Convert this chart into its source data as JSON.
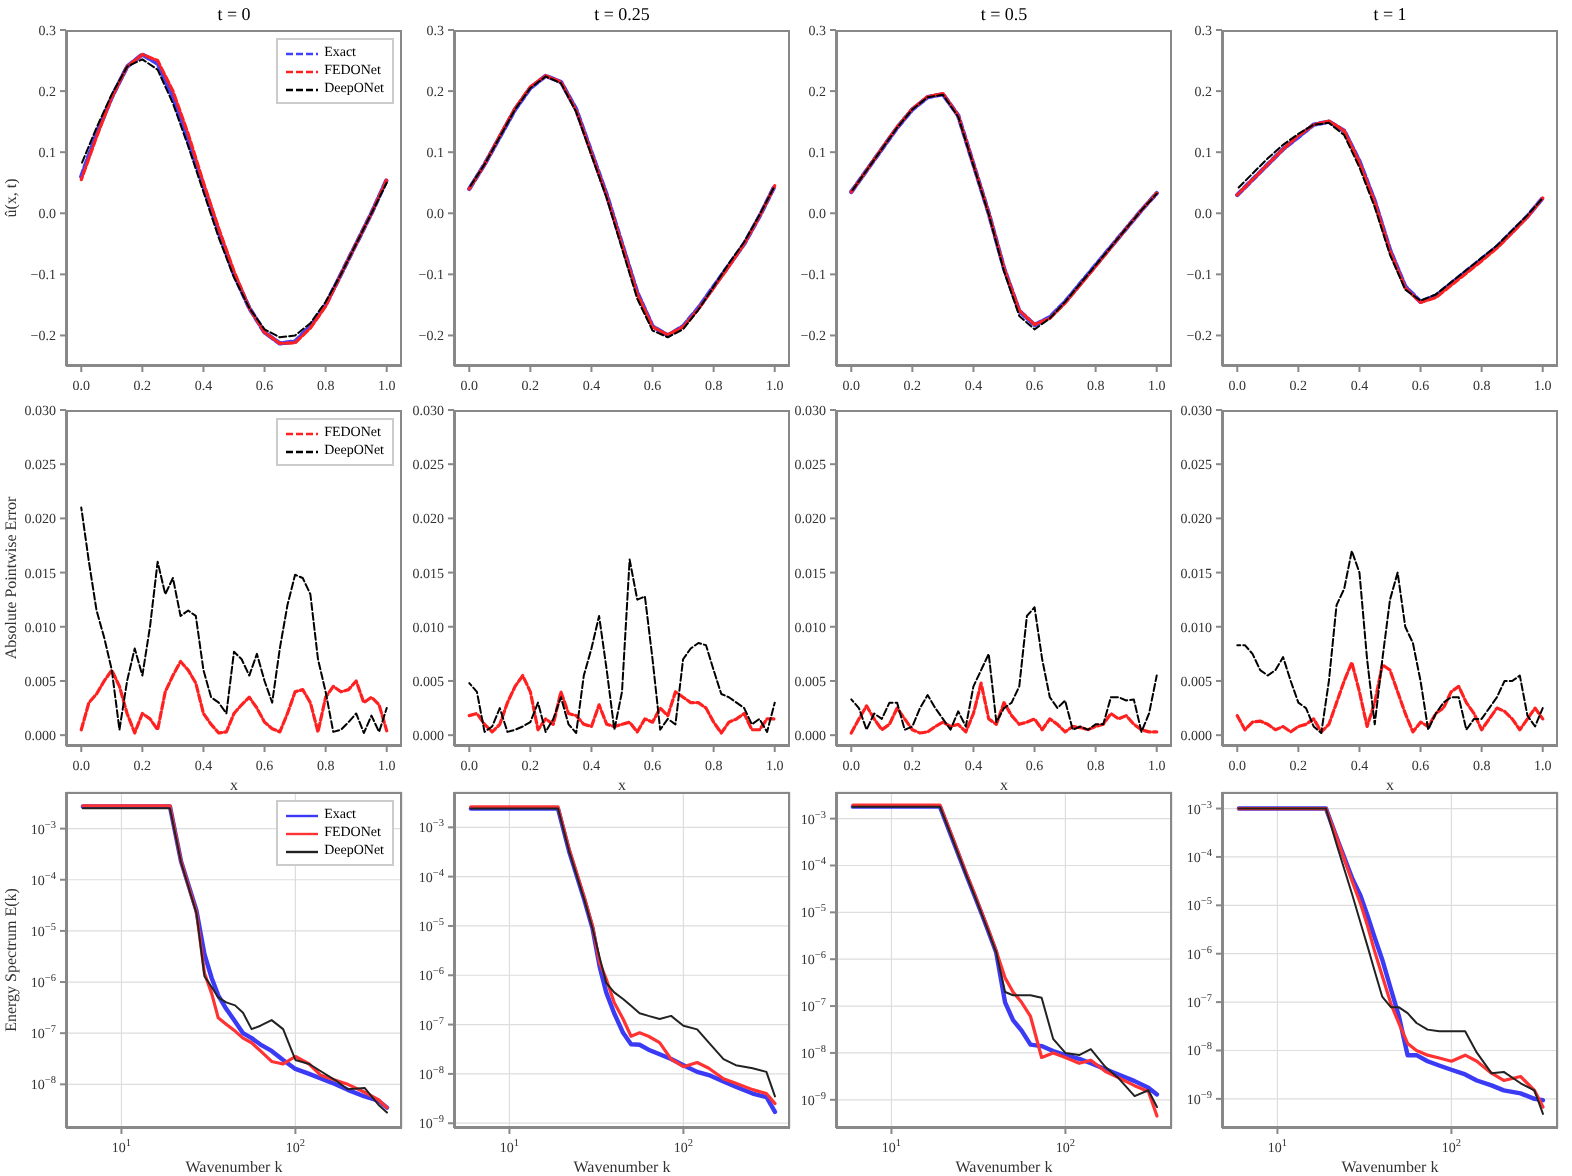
{
  "chart_data": [
    {
      "type": "line",
      "title": "t = 0",
      "ylabel": "û(x, t)",
      "legend": "top right",
      "line_style": "dashed",
      "xlim": [
        -0.05,
        1.05
      ],
      "ylim": [
        -0.25,
        0.3
      ],
      "xticks": [
        {
          "value": 0,
          "label": "0.0"
        },
        {
          "value": 0.2,
          "label": "0.2"
        },
        {
          "value": 0.4,
          "label": "0.4"
        },
        {
          "value": 0.6,
          "label": "0.6"
        },
        {
          "value": 0.8,
          "label": "0.8"
        },
        {
          "value": 1,
          "label": "1.0"
        }
      ],
      "yticks": [
        {
          "value": -0.2,
          "label": "−0.2"
        },
        {
          "value": -0.1,
          "label": "−0.1"
        },
        {
          "value": 0,
          "label": "0.0"
        },
        {
          "value": 0.1,
          "label": "0.1"
        },
        {
          "value": 0.2,
          "label": "0.2"
        },
        {
          "value": 0.3,
          "label": "0.3"
        }
      ],
      "x": [
        0,
        0.05,
        0.1,
        0.15,
        0.2,
        0.25,
        0.3,
        0.35,
        0.4,
        0.45,
        0.5,
        0.55,
        0.6,
        0.65,
        0.7,
        0.75,
        0.8,
        0.85,
        0.9,
        0.95,
        1
      ],
      "series": [
        {
          "name": "Exact",
          "color": "#4040ff",
          "values": [
            0.06,
            0.13,
            0.19,
            0.24,
            0.26,
            0.245,
            0.19,
            0.12,
            0.045,
            -0.03,
            -0.1,
            -0.155,
            -0.195,
            -0.213,
            -0.21,
            -0.185,
            -0.15,
            -0.1,
            -0.05,
            0.0,
            0.055
          ]
        },
        {
          "name": "FEDONet",
          "color": "#ff2020",
          "values": [
            0.055,
            0.125,
            0.19,
            0.24,
            0.26,
            0.25,
            0.2,
            0.13,
            0.05,
            -0.025,
            -0.095,
            -0.155,
            -0.195,
            -0.213,
            -0.212,
            -0.188,
            -0.152,
            -0.1,
            -0.05,
            0.0,
            0.055
          ]
        },
        {
          "name": "DeepONet",
          "color": "#000000",
          "values": [
            0.08,
            0.14,
            0.195,
            0.24,
            0.252,
            0.235,
            0.18,
            0.11,
            0.035,
            -0.04,
            -0.105,
            -0.155,
            -0.19,
            -0.203,
            -0.2,
            -0.18,
            -0.145,
            -0.1,
            -0.05,
            0.0,
            0.05
          ]
        }
      ]
    },
    {
      "type": "line",
      "title": "t = 0.25",
      "line_style": "dashed",
      "xlim": [
        -0.05,
        1.05
      ],
      "ylim": [
        -0.25,
        0.3
      ],
      "xticks": [
        {
          "value": 0,
          "label": "0.0"
        },
        {
          "value": 0.2,
          "label": "0.2"
        },
        {
          "value": 0.4,
          "label": "0.4"
        },
        {
          "value": 0.6,
          "label": "0.6"
        },
        {
          "value": 0.8,
          "label": "0.8"
        },
        {
          "value": 1,
          "label": "1.0"
        }
      ],
      "yticks": [
        {
          "value": -0.2,
          "label": "−0.2"
        },
        {
          "value": -0.1,
          "label": "−0.1"
        },
        {
          "value": 0,
          "label": "0.0"
        },
        {
          "value": 0.1,
          "label": "0.1"
        },
        {
          "value": 0.2,
          "label": "0.2"
        },
        {
          "value": 0.3,
          "label": "0.3"
        }
      ],
      "x": [
        0,
        0.05,
        0.1,
        0.15,
        0.2,
        0.25,
        0.3,
        0.35,
        0.4,
        0.45,
        0.5,
        0.55,
        0.6,
        0.65,
        0.7,
        0.75,
        0.8,
        0.85,
        0.9,
        0.95,
        1
      ],
      "series": [
        {
          "color": "#4040ff",
          "values": [
            0.04,
            0.08,
            0.125,
            0.17,
            0.205,
            0.225,
            0.215,
            0.17,
            0.1,
            0.03,
            -0.05,
            -0.13,
            -0.185,
            -0.2,
            -0.185,
            -0.155,
            -0.12,
            -0.085,
            -0.05,
            -0.005,
            0.045
          ]
        },
        {
          "color": "#ff2020",
          "values": [
            0.04,
            0.08,
            0.127,
            0.172,
            0.207,
            0.225,
            0.215,
            0.168,
            0.098,
            0.028,
            -0.052,
            -0.132,
            -0.186,
            -0.199,
            -0.186,
            -0.157,
            -0.122,
            -0.087,
            -0.05,
            -0.005,
            0.045
          ]
        },
        {
          "color": "#000000",
          "values": [
            0.042,
            0.08,
            0.125,
            0.17,
            0.205,
            0.224,
            0.213,
            0.166,
            0.095,
            0.025,
            -0.058,
            -0.14,
            -0.192,
            -0.203,
            -0.19,
            -0.158,
            -0.12,
            -0.082,
            -0.047,
            -0.003,
            0.045
          ]
        }
      ]
    },
    {
      "type": "line",
      "title": "t = 0.5",
      "line_style": "dashed",
      "xlim": [
        -0.05,
        1.05
      ],
      "ylim": [
        -0.25,
        0.3
      ],
      "xticks": [
        {
          "value": 0,
          "label": "0.0"
        },
        {
          "value": 0.2,
          "label": "0.2"
        },
        {
          "value": 0.4,
          "label": "0.4"
        },
        {
          "value": 0.6,
          "label": "0.6"
        },
        {
          "value": 0.8,
          "label": "0.8"
        },
        {
          "value": 1,
          "label": "1.0"
        }
      ],
      "yticks": [
        {
          "value": -0.2,
          "label": "−0.2"
        },
        {
          "value": -0.1,
          "label": "−0.1"
        },
        {
          "value": 0,
          "label": "0.0"
        },
        {
          "value": 0.1,
          "label": "0.1"
        },
        {
          "value": 0.2,
          "label": "0.2"
        },
        {
          "value": 0.3,
          "label": "0.3"
        }
      ],
      "x": [
        0,
        0.05,
        0.1,
        0.15,
        0.2,
        0.25,
        0.3,
        0.35,
        0.4,
        0.45,
        0.5,
        0.55,
        0.6,
        0.65,
        0.7,
        0.75,
        0.8,
        0.85,
        0.9,
        0.95,
        1
      ],
      "series": [
        {
          "color": "#4040ff",
          "values": [
            0.035,
            0.07,
            0.105,
            0.14,
            0.17,
            0.19,
            0.195,
            0.16,
            0.08,
            0.0,
            -0.09,
            -0.16,
            -0.183,
            -0.17,
            -0.145,
            -0.115,
            -0.085,
            -0.055,
            -0.025,
            0.005,
            0.033
          ]
        },
        {
          "color": "#ff2020",
          "values": [
            0.035,
            0.07,
            0.106,
            0.141,
            0.171,
            0.191,
            0.196,
            0.16,
            0.08,
            0.0,
            -0.09,
            -0.159,
            -0.182,
            -0.172,
            -0.147,
            -0.117,
            -0.087,
            -0.056,
            -0.025,
            0.005,
            0.033
          ]
        },
        {
          "color": "#000000",
          "values": [
            0.035,
            0.07,
            0.105,
            0.14,
            0.17,
            0.19,
            0.194,
            0.158,
            0.078,
            -0.002,
            -0.095,
            -0.168,
            -0.19,
            -0.172,
            -0.145,
            -0.115,
            -0.085,
            -0.055,
            -0.025,
            0.005,
            0.032
          ]
        }
      ]
    },
    {
      "type": "line",
      "title": "t = 1",
      "line_style": "dashed",
      "xlim": [
        -0.05,
        1.05
      ],
      "ylim": [
        -0.25,
        0.3
      ],
      "xticks": [
        {
          "value": 0,
          "label": "0.0"
        },
        {
          "value": 0.2,
          "label": "0.2"
        },
        {
          "value": 0.4,
          "label": "0.4"
        },
        {
          "value": 0.6,
          "label": "0.6"
        },
        {
          "value": 0.8,
          "label": "0.8"
        },
        {
          "value": 1,
          "label": "1.0"
        }
      ],
      "yticks": [
        {
          "value": -0.2,
          "label": "−0.2"
        },
        {
          "value": -0.1,
          "label": "−0.1"
        },
        {
          "value": 0,
          "label": "0.0"
        },
        {
          "value": 0.1,
          "label": "0.1"
        },
        {
          "value": 0.2,
          "label": "0.2"
        },
        {
          "value": 0.3,
          "label": "0.3"
        }
      ],
      "x": [
        0,
        0.05,
        0.1,
        0.15,
        0.2,
        0.25,
        0.3,
        0.35,
        0.4,
        0.45,
        0.5,
        0.55,
        0.6,
        0.65,
        0.7,
        0.75,
        0.8,
        0.85,
        0.9,
        0.95,
        1
      ],
      "series": [
        {
          "color": "#4040ff",
          "values": [
            0.03,
            0.055,
            0.08,
            0.105,
            0.125,
            0.145,
            0.15,
            0.135,
            0.085,
            0.02,
            -0.06,
            -0.12,
            -0.145,
            -0.135,
            -0.115,
            -0.095,
            -0.075,
            -0.055,
            -0.03,
            -0.005,
            0.025
          ]
        },
        {
          "color": "#ff2020",
          "values": [
            0.03,
            0.055,
            0.08,
            0.105,
            0.127,
            0.145,
            0.151,
            0.135,
            0.083,
            0.018,
            -0.062,
            -0.122,
            -0.146,
            -0.138,
            -0.118,
            -0.098,
            -0.078,
            -0.057,
            -0.032,
            -0.006,
            0.025
          ]
        },
        {
          "color": "#000000",
          "values": [
            0.04,
            0.065,
            0.09,
            0.112,
            0.13,
            0.145,
            0.148,
            0.128,
            0.075,
            0.01,
            -0.068,
            -0.125,
            -0.143,
            -0.133,
            -0.113,
            -0.093,
            -0.073,
            -0.053,
            -0.028,
            -0.003,
            0.025
          ]
        }
      ]
    },
    {
      "type": "line",
      "xlabel": "x",
      "ylabel": "Absolute Pointwise Error",
      "legend": "top right",
      "line_style": "dashed",
      "xlim": [
        -0.05,
        1.05
      ],
      "ylim": [
        -0.001,
        0.03
      ],
      "xticks": [
        {
          "value": 0,
          "label": "0.0"
        },
        {
          "value": 0.2,
          "label": "0.2"
        },
        {
          "value": 0.4,
          "label": "0.4"
        },
        {
          "value": 0.6,
          "label": "0.6"
        },
        {
          "value": 0.8,
          "label": "0.8"
        },
        {
          "value": 1,
          "label": "1.0"
        }
      ],
      "yticks": [
        {
          "value": 0,
          "label": "0.000"
        },
        {
          "value": 0.005,
          "label": "0.005"
        },
        {
          "value": 0.01,
          "label": "0.010"
        },
        {
          "value": 0.015,
          "label": "0.015"
        },
        {
          "value": 0.02,
          "label": "0.020"
        },
        {
          "value": 0.025,
          "label": "0.025"
        },
        {
          "value": 0.03,
          "label": "0.030"
        }
      ],
      "x": [
        0,
        0.025,
        0.05,
        0.075,
        0.1,
        0.125,
        0.15,
        0.175,
        0.2,
        0.225,
        0.25,
        0.275,
        0.3,
        0.325,
        0.35,
        0.375,
        0.4,
        0.425,
        0.45,
        0.475,
        0.5,
        0.525,
        0.55,
        0.575,
        0.6,
        0.625,
        0.65,
        0.675,
        0.7,
        0.725,
        0.75,
        0.775,
        0.8,
        0.825,
        0.85,
        0.875,
        0.9,
        0.925,
        0.95,
        0.975,
        1
      ],
      "series": [
        {
          "name": "FEDONet",
          "color": "#ff2020",
          "values": [
            0.0005,
            0.003,
            0.0038,
            0.005,
            0.006,
            0.0045,
            0.002,
            0.0002,
            0.002,
            0.0015,
            0.0005,
            0.004,
            0.0055,
            0.0068,
            0.006,
            0.0048,
            0.002,
            0.001,
            0.0002,
            0.0003,
            0.002,
            0.0028,
            0.0035,
            0.0025,
            0.0012,
            0.0006,
            0.0003,
            0.002,
            0.004,
            0.0042,
            0.003,
            0.0003,
            0.0035,
            0.0045,
            0.004,
            0.0042,
            0.005,
            0.003,
            0.0035,
            0.0028,
            0.0004
          ]
        },
        {
          "name": "DeepONet",
          "color": "#000000",
          "values": [
            0.021,
            0.016,
            0.0115,
            0.009,
            0.006,
            0.0005,
            0.005,
            0.008,
            0.0055,
            0.01,
            0.016,
            0.013,
            0.0145,
            0.011,
            0.0115,
            0.011,
            0.006,
            0.0035,
            0.003,
            0.002,
            0.0077,
            0.007,
            0.0055,
            0.0075,
            0.005,
            0.003,
            0.008,
            0.012,
            0.0148,
            0.0145,
            0.013,
            0.007,
            0.004,
            0.0003,
            0.0005,
            0.0012,
            0.002,
            0.0002,
            0.0018,
            0.0003,
            0.0025
          ]
        }
      ]
    },
    {
      "type": "line",
      "xlabel": "x",
      "line_style": "dashed",
      "xlim": [
        -0.05,
        1.05
      ],
      "ylim": [
        -0.001,
        0.03
      ],
      "xticks": [
        {
          "value": 0,
          "label": "0.0"
        },
        {
          "value": 0.2,
          "label": "0.2"
        },
        {
          "value": 0.4,
          "label": "0.4"
        },
        {
          "value": 0.6,
          "label": "0.6"
        },
        {
          "value": 0.8,
          "label": "0.8"
        },
        {
          "value": 1,
          "label": "1.0"
        }
      ],
      "yticks": [
        {
          "value": 0,
          "label": "0.000"
        },
        {
          "value": 0.005,
          "label": "0.005"
        },
        {
          "value": 0.01,
          "label": "0.010"
        },
        {
          "value": 0.015,
          "label": "0.015"
        },
        {
          "value": 0.02,
          "label": "0.020"
        },
        {
          "value": 0.025,
          "label": "0.025"
        },
        {
          "value": 0.03,
          "label": "0.030"
        }
      ],
      "x": [
        0,
        0.025,
        0.05,
        0.075,
        0.1,
        0.125,
        0.15,
        0.175,
        0.2,
        0.225,
        0.25,
        0.275,
        0.3,
        0.325,
        0.35,
        0.375,
        0.4,
        0.425,
        0.45,
        0.475,
        0.5,
        0.525,
        0.55,
        0.575,
        0.6,
        0.625,
        0.65,
        0.675,
        0.7,
        0.725,
        0.75,
        0.775,
        0.8,
        0.825,
        0.85,
        0.875,
        0.9,
        0.925,
        0.95,
        0.975,
        1
      ],
      "series": [
        {
          "color": "#ff2020",
          "values": [
            0.0018,
            0.002,
            0.001,
            0.0003,
            0.001,
            0.003,
            0.0045,
            0.0055,
            0.004,
            0.0005,
            0.0015,
            0.001,
            0.004,
            0.002,
            0.0018,
            0.001,
            0.0008,
            0.0028,
            0.001,
            0.0008,
            0.001,
            0.0012,
            0.0003,
            0.0015,
            0.0012,
            0.0025,
            0.0018,
            0.004,
            0.0035,
            0.003,
            0.003,
            0.0025,
            0.0012,
            0.0002,
            0.0012,
            0.0015,
            0.002,
            0.0005,
            0.0005,
            0.0015,
            0.0015
          ]
        },
        {
          "color": "#000000",
          "values": [
            0.0048,
            0.004,
            0.0003,
            0.0008,
            0.0025,
            0.0003,
            0.0005,
            0.0008,
            0.0012,
            0.003,
            0.0003,
            0.0015,
            0.0035,
            0.001,
            0.0002,
            0.0055,
            0.008,
            0.011,
            0.006,
            0.0005,
            0.004,
            0.0162,
            0.0125,
            0.0128,
            0.007,
            0.0005,
            0.0015,
            0.001,
            0.007,
            0.008,
            0.0085,
            0.0083,
            0.006,
            0.0038,
            0.0035,
            0.003,
            0.0025,
            0.001,
            0.0015,
            0.0003,
            0.003
          ]
        }
      ]
    },
    {
      "type": "line",
      "xlabel": "x",
      "line_style": "dashed",
      "xlim": [
        -0.05,
        1.05
      ],
      "ylim": [
        -0.001,
        0.03
      ],
      "xticks": [
        {
          "value": 0,
          "label": "0.0"
        },
        {
          "value": 0.2,
          "label": "0.2"
        },
        {
          "value": 0.4,
          "label": "0.4"
        },
        {
          "value": 0.6,
          "label": "0.6"
        },
        {
          "value": 0.8,
          "label": "0.8"
        },
        {
          "value": 1,
          "label": "1.0"
        }
      ],
      "yticks": [
        {
          "value": 0,
          "label": "0.000"
        },
        {
          "value": 0.005,
          "label": "0.005"
        },
        {
          "value": 0.01,
          "label": "0.010"
        },
        {
          "value": 0.015,
          "label": "0.015"
        },
        {
          "value": 0.02,
          "label": "0.020"
        },
        {
          "value": 0.025,
          "label": "0.025"
        },
        {
          "value": 0.03,
          "label": "0.030"
        }
      ],
      "x": [
        0,
        0.025,
        0.05,
        0.075,
        0.1,
        0.125,
        0.15,
        0.175,
        0.2,
        0.225,
        0.25,
        0.275,
        0.3,
        0.325,
        0.35,
        0.375,
        0.4,
        0.425,
        0.45,
        0.475,
        0.5,
        0.525,
        0.55,
        0.575,
        0.6,
        0.625,
        0.65,
        0.675,
        0.7,
        0.725,
        0.75,
        0.775,
        0.8,
        0.825,
        0.85,
        0.875,
        0.9,
        0.925,
        0.95,
        0.975,
        1
      ],
      "series": [
        {
          "color": "#ff2020",
          "values": [
            0.0002,
            0.0015,
            0.0027,
            0.0015,
            0.0005,
            0.001,
            0.0025,
            0.0015,
            0.0005,
            0.0002,
            0.0003,
            0.0008,
            0.0012,
            0.0008,
            0.001,
            0.0003,
            0.002,
            0.0048,
            0.0015,
            0.001,
            0.003,
            0.0018,
            0.001,
            0.0012,
            0.0015,
            0.0005,
            0.0015,
            0.001,
            0.0003,
            0.0008,
            0.0007,
            0.0005,
            0.0008,
            0.001,
            0.002,
            0.0015,
            0.0018,
            0.001,
            0.0005,
            0.0003,
            0.0003
          ]
        },
        {
          "color": "#000000",
          "values": [
            0.0033,
            0.0025,
            0.0005,
            0.002,
            0.0015,
            0.003,
            0.003,
            0.0005,
            0.0008,
            0.0025,
            0.0037,
            0.0025,
            0.0015,
            0.0005,
            0.0022,
            0.0008,
            0.0045,
            0.006,
            0.0075,
            0.0012,
            0.0025,
            0.003,
            0.0045,
            0.011,
            0.0118,
            0.007,
            0.0035,
            0.0025,
            0.0032,
            0.0005,
            0.0008,
            0.0005,
            0.001,
            0.001,
            0.0035,
            0.0035,
            0.0032,
            0.0033,
            0.0003,
            0.002,
            0.0055
          ]
        }
      ]
    },
    {
      "type": "line",
      "xlabel": "x",
      "line_style": "dashed",
      "xlim": [
        -0.05,
        1.05
      ],
      "ylim": [
        -0.001,
        0.03
      ],
      "xticks": [
        {
          "value": 0,
          "label": "0.0"
        },
        {
          "value": 0.2,
          "label": "0.2"
        },
        {
          "value": 0.4,
          "label": "0.4"
        },
        {
          "value": 0.6,
          "label": "0.6"
        },
        {
          "value": 0.8,
          "label": "0.8"
        },
        {
          "value": 1,
          "label": "1.0"
        }
      ],
      "yticks": [
        {
          "value": 0,
          "label": "0.000"
        },
        {
          "value": 0.005,
          "label": "0.005"
        },
        {
          "value": 0.01,
          "label": "0.010"
        },
        {
          "value": 0.015,
          "label": "0.015"
        },
        {
          "value": 0.02,
          "label": "0.020"
        },
        {
          "value": 0.025,
          "label": "0.025"
        },
        {
          "value": 0.03,
          "label": "0.030"
        }
      ],
      "x": [
        0,
        0.025,
        0.05,
        0.075,
        0.1,
        0.125,
        0.15,
        0.175,
        0.2,
        0.225,
        0.25,
        0.275,
        0.3,
        0.325,
        0.35,
        0.375,
        0.4,
        0.425,
        0.45,
        0.475,
        0.5,
        0.525,
        0.55,
        0.575,
        0.6,
        0.625,
        0.65,
        0.675,
        0.7,
        0.725,
        0.75,
        0.775,
        0.8,
        0.825,
        0.85,
        0.875,
        0.9,
        0.925,
        0.95,
        0.975,
        1
      ],
      "series": [
        {
          "color": "#ff2020",
          "values": [
            0.0018,
            0.0005,
            0.0012,
            0.0013,
            0.001,
            0.0005,
            0.0008,
            0.0003,
            0.0008,
            0.001,
            0.0015,
            0.0003,
            0.001,
            0.003,
            0.005,
            0.0067,
            0.004,
            0.0008,
            0.003,
            0.0065,
            0.006,
            0.004,
            0.002,
            0.0003,
            0.0012,
            0.0008,
            0.002,
            0.0025,
            0.004,
            0.0045,
            0.003,
            0.002,
            0.0005,
            0.0015,
            0.0025,
            0.0022,
            0.0015,
            0.0005,
            0.0015,
            0.0025,
            0.0015
          ]
        },
        {
          "color": "#000000",
          "values": [
            0.0083,
            0.0083,
            0.0075,
            0.006,
            0.0055,
            0.006,
            0.0072,
            0.005,
            0.003,
            0.0025,
            0.0008,
            0.0002,
            0.005,
            0.012,
            0.0135,
            0.017,
            0.015,
            0.007,
            0.001,
            0.007,
            0.0125,
            0.015,
            0.01,
            0.0085,
            0.005,
            0.0005,
            0.002,
            0.003,
            0.0035,
            0.0035,
            0.0005,
            0.0015,
            0.0015,
            0.0025,
            0.0035,
            0.005,
            0.005,
            0.0055,
            0.0018,
            0.0008,
            0.0025
          ]
        }
      ]
    },
    {
      "type": "line",
      "xlabel": "Wavenumber k",
      "ylabel": "Energy Spectrum E(k)",
      "legend": "top right",
      "line_style": "solid",
      "log": "xy",
      "grid": true,
      "xlim": [
        4.8,
        410
      ],
      "ylim": [
        1.4e-09,
        0.0052
      ],
      "xticks": [
        {
          "value": 10,
          "label": "10$^{1}$"
        },
        {
          "value": 100,
          "label": "10$^{2}$"
        }
      ],
      "yticks": [
        {
          "value": 1e-08,
          "label": "10$^{−8}$"
        },
        {
          "value": 1e-07,
          "label": "10$^{−7}$"
        },
        {
          "value": 1e-06,
          "label": "10$^{−6}$"
        },
        {
          "value": 1e-05,
          "label": "10$^{−5}$"
        },
        {
          "value": 0.0001,
          "label": "10$^{−4}$"
        },
        {
          "value": 0.001,
          "label": "10$^{−3}$"
        }
      ],
      "x": [
        6,
        19,
        22,
        27,
        30,
        33,
        36,
        40,
        45,
        50,
        56,
        63,
        73,
        85,
        100,
        120,
        140,
        170,
        200,
        250,
        300,
        336
      ],
      "series": [
        {
          "name": "Exact",
          "color": "#3b3bf5",
          "values": [
            0.0027,
            0.0027,
            0.00023,
            2.5e-05,
            3.5e-06,
            1.2e-06,
            5.5e-07,
            3e-07,
            1.7e-07,
            1e-07,
            8e-08,
            6e-08,
            4.5e-08,
            3e-08,
            2e-08,
            1.6e-08,
            1.3e-08,
            1e-08,
            7.8e-09,
            5.8e-09,
            4.8e-09,
            3.5e-09
          ]
        },
        {
          "name": "FEDONet",
          "color": "#ff3333",
          "values": [
            0.0028,
            0.0028,
            0.00023,
            2.3e-05,
            1.5e-06,
            6e-07,
            2e-07,
            1.5e-07,
            1.1e-07,
            8e-08,
            6.5e-08,
            4.5e-08,
            2.8e-08,
            2.5e-08,
            3.5e-08,
            2.5e-08,
            1.5e-08,
            1.2e-08,
            1e-08,
            7e-09,
            5e-09,
            3.5e-09
          ]
        },
        {
          "name": "DeepONet",
          "color": "#222222",
          "values": [
            0.0025,
            0.0025,
            0.00022,
            2.2e-05,
            1.3e-06,
            8e-07,
            5e-07,
            4e-07,
            3.5e-07,
            2.5e-07,
            1.2e-07,
            1.4e-07,
            1.8e-07,
            1.2e-07,
            3e-08,
            2.5e-08,
            1.8e-08,
            1.2e-08,
            8e-09,
            8.5e-09,
            4e-09,
            2.8e-09
          ]
        }
      ]
    },
    {
      "type": "line",
      "xlabel": "Wavenumber k",
      "line_style": "solid",
      "log": "xy",
      "grid": true,
      "xlim": [
        4.8,
        410
      ],
      "ylim": [
        8e-10,
        0.0052
      ],
      "xticks": [
        {
          "value": 10,
          "label": "10$^{1}$"
        },
        {
          "value": 100,
          "label": "10$^{2}$"
        }
      ],
      "yticks": [
        {
          "value": 1e-09,
          "label": "10$^{−9}$"
        },
        {
          "value": 1e-08,
          "label": "10$^{−8}$"
        },
        {
          "value": 1e-07,
          "label": "10$^{−7}$"
        },
        {
          "value": 1e-06,
          "label": "10$^{−6}$"
        },
        {
          "value": 1e-05,
          "label": "10$^{−5}$"
        },
        {
          "value": 0.0001,
          "label": "10$^{−4}$"
        },
        {
          "value": 0.001,
          "label": "10$^{−3}$"
        }
      ],
      "x": [
        6,
        19,
        22,
        27,
        30,
        33,
        36,
        40,
        45,
        50,
        56,
        63,
        73,
        85,
        100,
        120,
        140,
        170,
        200,
        250,
        300,
        336
      ],
      "series": [
        {
          "color": "#3b3bf5",
          "values": [
            0.0024,
            0.0024,
            0.00033,
            3.3e-05,
            9e-06,
            1.5e-06,
            4.5e-07,
            1.7e-07,
            6.8e-08,
            4e-08,
            3.9e-08,
            3.1e-08,
            2.5e-08,
            2e-08,
            1.5e-08,
            1.1e-08,
            9.5e-09,
            7e-09,
            5.5e-09,
            4e-09,
            3.4e-09,
            1.7e-09
          ]
        },
        {
          "color": "#ff3333",
          "values": [
            0.0026,
            0.0026,
            0.00037,
            3.7e-05,
            1e-05,
            1.8e-06,
            8.4e-07,
            2.8e-07,
            1.3e-07,
            5.8e-08,
            6.8e-08,
            5.8e-08,
            4.3e-08,
            2e-08,
            1.4e-08,
            1.7e-08,
            1.3e-08,
            8e-09,
            6.5e-09,
            4.8e-09,
            4e-09,
            2.5e-09
          ]
        },
        {
          "color": "#222222",
          "values": [
            0.0024,
            0.0024,
            0.00033,
            3.3e-05,
            9e-06,
            2.3e-06,
            7e-07,
            4.5e-07,
            3.3e-07,
            2.4e-07,
            1.7e-07,
            1.5e-07,
            1.3e-07,
            1.5e-07,
            9.5e-08,
            8e-08,
            4.3e-08,
            2e-08,
            1.5e-08,
            1.3e-08,
            1.1e-08,
            3.5e-09
          ]
        }
      ]
    },
    {
      "type": "line",
      "xlabel": "Wavenumber k",
      "line_style": "solid",
      "log": "xy",
      "grid": true,
      "xlim": [
        4.8,
        410
      ],
      "ylim": [
        2.5e-10,
        0.0037
      ],
      "xticks": [
        {
          "value": 10,
          "label": "10$^{1}$"
        },
        {
          "value": 100,
          "label": "10$^{2}$"
        }
      ],
      "yticks": [
        {
          "value": 1e-09,
          "label": "10$^{−9}$"
        },
        {
          "value": 1e-08,
          "label": "10$^{−8}$"
        },
        {
          "value": 1e-07,
          "label": "10$^{−7}$"
        },
        {
          "value": 1e-06,
          "label": "10$^{−6}$"
        },
        {
          "value": 1e-05,
          "label": "10$^{−5}$"
        },
        {
          "value": 0.0001,
          "label": "10$^{−4}$"
        },
        {
          "value": 0.001,
          "label": "10$^{−3}$"
        }
      ],
      "x": [
        6,
        19,
        22,
        27,
        30,
        33,
        36,
        40,
        45,
        50,
        56,
        63,
        73,
        85,
        100,
        120,
        140,
        170,
        200,
        250,
        300,
        336
      ],
      "series": [
        {
          "color": "#3b3bf5",
          "values": [
            0.0018,
            0.0018,
            0.00044,
            6.1e-05,
            2.3e-05,
            9.3e-06,
            4e-06,
            1.4e-06,
            1.2e-07,
            5e-08,
            3e-08,
            1.5e-08,
            1.4e-08,
            1.1e-08,
            9e-09,
            7.5e-09,
            6e-09,
            4.5e-09,
            3.5e-09,
            2.5e-09,
            1.8e-09,
            1.3e-09
          ]
        },
        {
          "color": "#ff3333",
          "values": [
            0.00195,
            0.00195,
            0.00048,
            6.6e-05,
            2.5e-05,
            1e-05,
            4.4e-06,
            1.5e-06,
            4e-07,
            2e-07,
            1.2e-07,
            6e-08,
            8e-09,
            1e-08,
            8e-09,
            6e-09,
            7e-09,
            4e-09,
            3e-09,
            2e-09,
            1.5e-09,
            4.5e-10
          ]
        },
        {
          "color": "#222222",
          "values": [
            0.0018,
            0.0018,
            0.00044,
            6.1e-05,
            2.3e-05,
            9.3e-06,
            4e-06,
            1.4e-06,
            2e-07,
            1.7e-07,
            1.7e-07,
            1.7e-07,
            1.5e-07,
            2e-08,
            1e-08,
            9e-09,
            1.2e-08,
            5e-09,
            3e-09,
            1.2e-09,
            1.6e-09,
            7e-10
          ]
        }
      ]
    },
    {
      "type": "line",
      "xlabel": "Wavenumber k",
      "line_style": "solid",
      "log": "xy",
      "grid": true,
      "xlim": [
        4.8,
        410
      ],
      "ylim": [
        2.5e-10,
        0.0022
      ],
      "xticks": [
        {
          "value": 10,
          "label": "10$^{1}$"
        },
        {
          "value": 100,
          "label": "10$^{2}$"
        }
      ],
      "yticks": [
        {
          "value": 1e-09,
          "label": "10$^{−9}$"
        },
        {
          "value": 1e-08,
          "label": "10$^{−8}$"
        },
        {
          "value": 1e-07,
          "label": "10$^{−7}$"
        },
        {
          "value": 1e-06,
          "label": "10$^{−6}$"
        },
        {
          "value": 1e-05,
          "label": "10$^{−5}$"
        },
        {
          "value": 0.0001,
          "label": "10$^{−4}$"
        },
        {
          "value": 0.001,
          "label": "10$^{−3}$"
        }
      ],
      "x": [
        6,
        19,
        22,
        27,
        30,
        33,
        36,
        40,
        45,
        50,
        56,
        63,
        73,
        85,
        100,
        120,
        140,
        170,
        200,
        250,
        300,
        336
      ],
      "series": [
        {
          "color": "#3b3bf5",
          "values": [
            0.001,
            0.001,
            0.00024,
            3.5e-05,
            1.6e-05,
            6e-06,
            2.3e-06,
            7.6e-07,
            1.8e-07,
            5e-08,
            8e-09,
            8e-09,
            6e-09,
            4.9e-09,
            4e-09,
            3.2e-09,
            2.4e-09,
            1.9e-09,
            1.5e-09,
            1.3e-09,
            1e-09,
            9.4e-10
          ]
        },
        {
          "color": "#ff3333",
          "values": [
            0.001,
            0.001,
            0.00024,
            3e-05,
            1.1e-05,
            3.7e-06,
            1.2e-06,
            3.5e-07,
            9e-08,
            3.6e-08,
            1.4e-08,
            1e-08,
            8e-09,
            7e-09,
            6e-09,
            8e-09,
            6e-09,
            3.4e-09,
            2.4e-09,
            2.9e-09,
            1.5e-09,
            6.8e-10
          ]
        },
        {
          "color": "#222222",
          "values": [
            0.001,
            0.001,
            0.00017,
            1.6e-05,
            4.4e-06,
            1.4e-06,
            4.7e-07,
            1.3e-07,
            7.8e-08,
            7.8e-08,
            5.9e-08,
            3.7e-08,
            2.7e-08,
            2.5e-08,
            2.5e-08,
            2.5e-08,
            9e-09,
            3.4e-09,
            3.6e-09,
            2.1e-09,
            1.5e-09,
            4.9e-10
          ]
        }
      ]
    }
  ]
}
